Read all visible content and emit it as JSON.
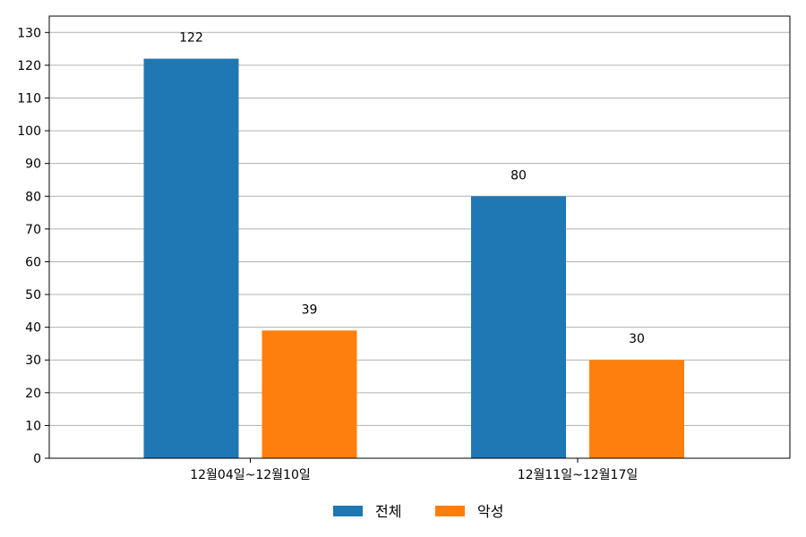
{
  "chart_data": {
    "type": "bar",
    "categories": [
      "12월04일~12월10일",
      "12월11일~12월17일"
    ],
    "series": [
      {
        "name": "전체",
        "values": [
          122,
          80
        ],
        "color": "#1f77b4"
      },
      {
        "name": "악성",
        "values": [
          39,
          30
        ],
        "color": "#ff7f0e"
      }
    ],
    "ylim": [
      0,
      135
    ],
    "yticks": [
      0,
      10,
      20,
      30,
      40,
      50,
      60,
      70,
      80,
      90,
      100,
      110,
      120,
      130
    ],
    "grid": true,
    "data_labels": true,
    "legend_position": "bottom-center"
  }
}
